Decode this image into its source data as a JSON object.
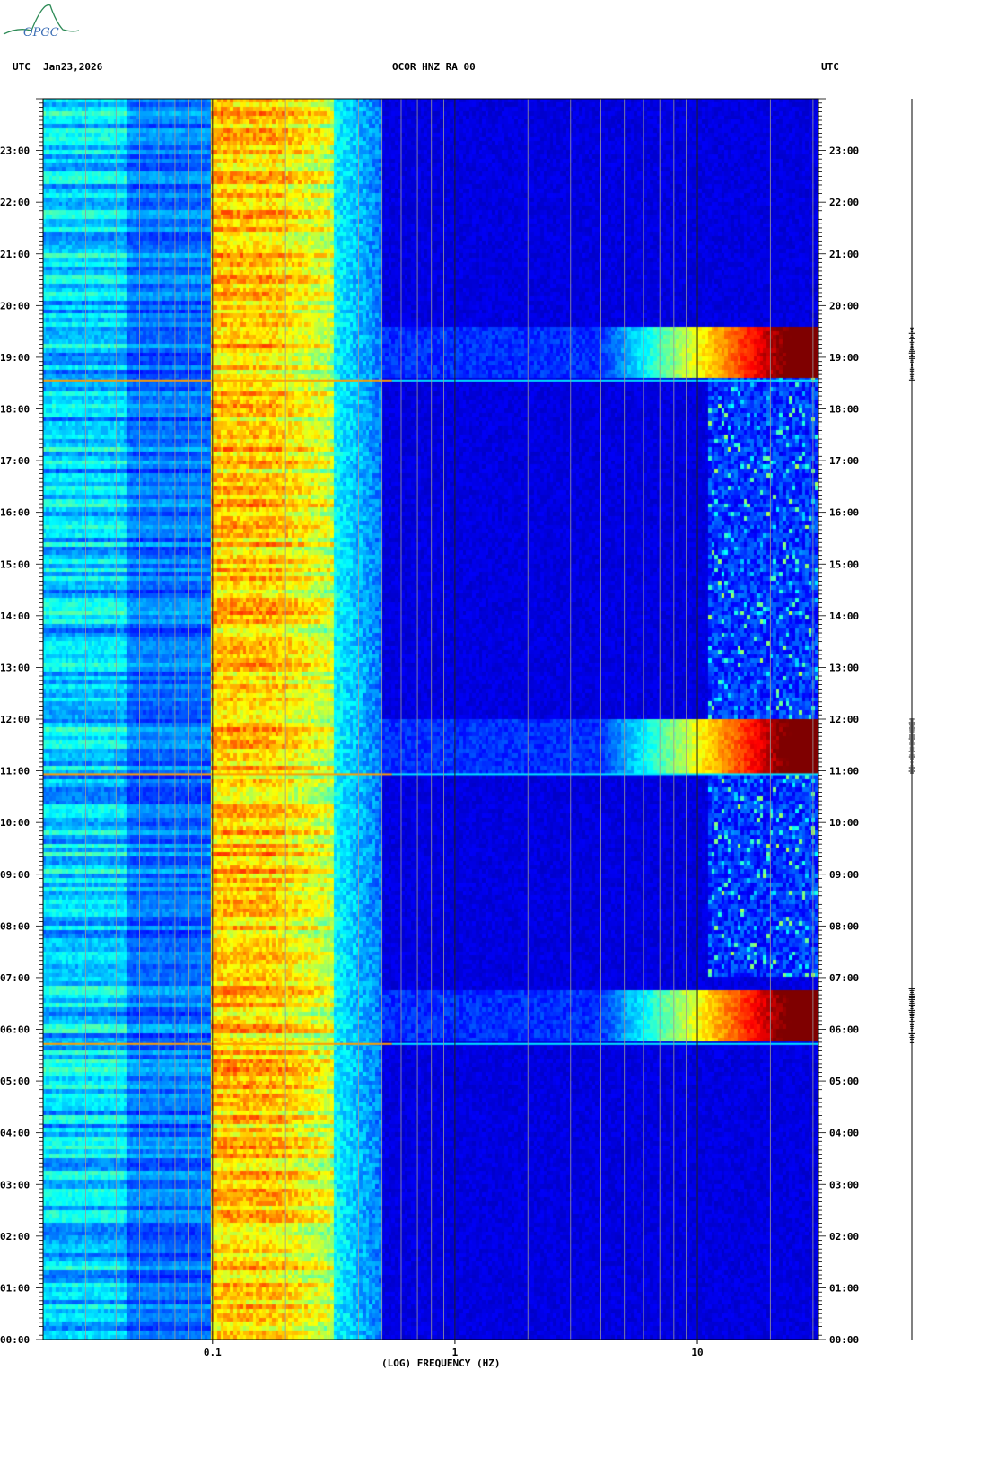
{
  "logo": {
    "text": "OPGC"
  },
  "header": {
    "left_timezone": "UTC",
    "date": "Jan23,2026",
    "station_title": "OCOR HNZ RA 00",
    "right_timezone": "UTC"
  },
  "chart_data": {
    "type": "heatmap",
    "title": "OCOR HNZ RA 00",
    "date": "Jan23,2026",
    "xlabel": "(LOG) FREQUENCY (HZ)",
    "x_scale": "log",
    "xlim": [
      0.02,
      31.6
    ],
    "x_ticks": [
      0.1,
      1,
      10
    ],
    "x_tick_labels": [
      "0.1",
      "1",
      "10"
    ],
    "ylabel": "UTC",
    "ylim_hours": [
      0,
      24
    ],
    "y_tick_labels": [
      "00:00",
      "01:00",
      "02:00",
      "03:00",
      "04:00",
      "05:00",
      "06:00",
      "07:00",
      "08:00",
      "09:00",
      "10:00",
      "11:00",
      "12:00",
      "13:00",
      "14:00",
      "15:00",
      "16:00",
      "17:00",
      "18:00",
      "19:00",
      "20:00",
      "21:00",
      "22:00",
      "23:00"
    ],
    "colormap": [
      "#00007f",
      "#0000ff",
      "#0080ff",
      "#00ffff",
      "#80ff80",
      "#ffff00",
      "#ff8000",
      "#ff0000",
      "#7f0000"
    ],
    "features": [
      {
        "name": "microseism band",
        "freq_range_hz": [
          0.1,
          0.4
        ],
        "level": "high"
      },
      {
        "name": "long period band",
        "freq_range_hz": [
          0.02,
          0.1
        ],
        "level": "moderate"
      },
      {
        "name": "daytime high-frequency noise",
        "time_range": [
          "07:00",
          "18:30"
        ],
        "freq_range_hz": [
          10,
          31.6
        ],
        "level": "moderate"
      }
    ],
    "events": [
      {
        "start": "05:43",
        "end": "06:47",
        "peak_freq_range_hz": [
          15,
          31.6
        ],
        "level": "saturated"
      },
      {
        "start": "10:56",
        "end": "12:00",
        "peak_freq_range_hz": [
          15,
          31.6
        ],
        "level": "saturated"
      },
      {
        "start": "18:33",
        "end": "19:34",
        "peak_freq_range_hz": [
          15,
          31.6
        ],
        "level": "saturated"
      }
    ]
  }
}
